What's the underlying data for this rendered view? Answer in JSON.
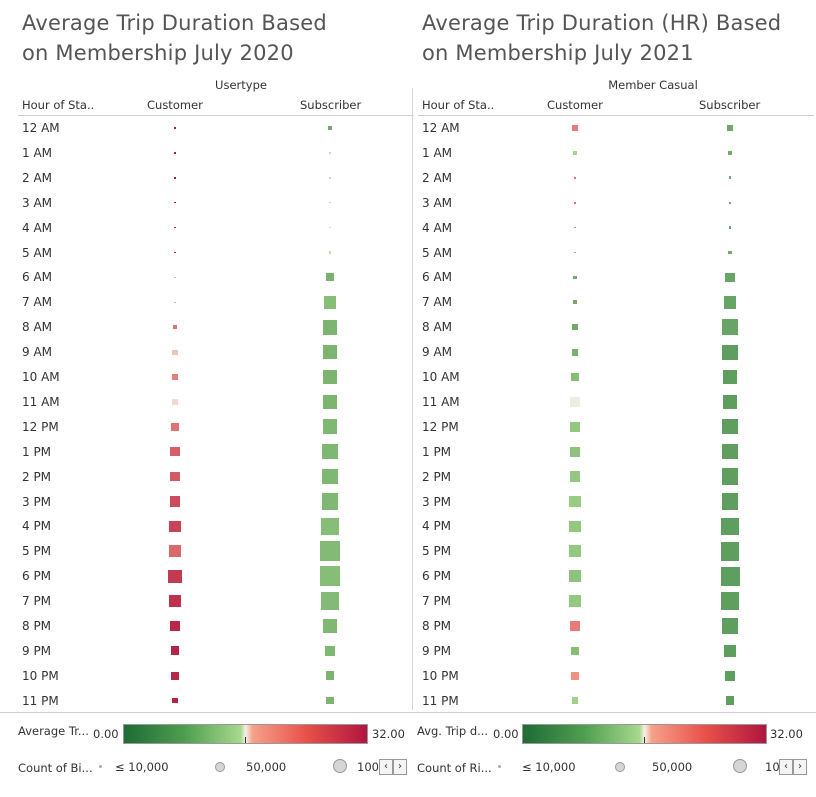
{
  "chart_data": [
    {
      "type": "heatmap",
      "title": "Average Trip Duration Based on Membership July 2020",
      "column_group_title": "Usertype",
      "row_header": "Hour of Sta..",
      "columns": [
        "Customer",
        "Subscriber"
      ],
      "rows": [
        "12 AM",
        "1 AM",
        "2 AM",
        "3 AM",
        "4 AM",
        "5 AM",
        "6 AM",
        "7 AM",
        "8 AM",
        "9 AM",
        "10 AM",
        "11 AM",
        "12 PM",
        "1 PM",
        "2 PM",
        "3 PM",
        "4 PM",
        "5 PM",
        "6 PM",
        "7 PM",
        "8 PM",
        "9 PM",
        "10 PM",
        "11 PM"
      ],
      "color_measure": "Average Trip Duration",
      "size_measure": "Count of Bike Trips",
      "avg_duration": {
        "Customer": [
          31.5,
          31.5,
          31.5,
          31.5,
          31.5,
          31.5,
          17.5,
          17.5,
          22,
          17,
          21,
          16.5,
          22,
          24,
          24.5,
          26,
          27,
          23,
          28,
          29,
          30,
          30.5,
          30,
          30.5
        ],
        "Subscriber": [
          6,
          15,
          15,
          15,
          15,
          15,
          7,
          9,
          7.5,
          7.5,
          7.5,
          7.5,
          8,
          8,
          8,
          8,
          9,
          8.5,
          9,
          8.5,
          8,
          8,
          7.5,
          7.5
        ]
      },
      "trip_count": {
        "Customer": [
          300,
          250,
          200,
          150,
          150,
          200,
          200,
          300,
          6000,
          8000,
          9000,
          10000,
          20000,
          26000,
          28000,
          32000,
          38000,
          43000,
          52000,
          48000,
          32000,
          24000,
          17000,
          8000
        ],
        "Subscriber": [
          5000,
          1200,
          800,
          600,
          600,
          1500,
          20000,
          48000,
          66000,
          62000,
          58000,
          60000,
          66000,
          72000,
          74000,
          80000,
          90000,
          118000,
          122000,
          100000,
          58000,
          32000,
          24000,
          16000
        ]
      }
    },
    {
      "type": "heatmap",
      "title": "Average Trip Duration (HR) Based on Membership July 2021",
      "column_group_title": "Member Casual",
      "row_header": "Hour of Sta..",
      "columns": [
        "Customer",
        "Subscriber"
      ],
      "rows": [
        "12 AM",
        "1 AM",
        "2 AM",
        "3 AM",
        "4 AM",
        "5 AM",
        "6 AM",
        "7 AM",
        "8 AM",
        "9 AM",
        "10 AM",
        "11 AM",
        "12 PM",
        "1 PM",
        "2 PM",
        "3 PM",
        "4 PM",
        "5 PM",
        "6 PM",
        "7 PM",
        "8 PM",
        "9 PM",
        "10 PM",
        "11 PM"
      ],
      "color_measure": "Avg. Trip duration (HR)",
      "size_measure": "Count of Rides",
      "avg_duration": {
        "Customer": [
          21,
          14,
          22,
          22,
          22,
          21,
          6,
          6,
          6,
          7,
          9,
          16,
          11,
          10,
          11,
          12,
          11,
          11,
          10,
          11,
          21,
          9,
          19,
          13
        ],
        "Subscriber": [
          6,
          6,
          6,
          6,
          6,
          6,
          5,
          5,
          5,
          4,
          4,
          4,
          4,
          4,
          4,
          4,
          4,
          4,
          4,
          4,
          4,
          4,
          4,
          4
        ]
      },
      "trip_count": {
        "Customer": [
          6000,
          4000,
          700,
          600,
          600,
          600,
          2000,
          3500,
          7000,
          9000,
          12000,
          18000,
          19000,
          20000,
          21000,
          24000,
          25000,
          28000,
          30000,
          27000,
          20000,
          14000,
          12000,
          9000
        ],
        "Subscriber": [
          8000,
          3500,
          1500,
          1000,
          1000,
          2500,
          16000,
          30000,
          48000,
          44000,
          38000,
          40000,
          44000,
          47000,
          52000,
          56000,
          60000,
          66000,
          70000,
          60000,
          44000,
          30000,
          20000,
          14000
        ]
      }
    }
  ],
  "legend": {
    "left": {
      "color_label": "Average Tr...",
      "color_min": "0.00",
      "color_max": "32.00",
      "size_label": "Count of Bi...",
      "size_items": [
        "≤ 10,000",
        "50,000",
        "100"
      ]
    },
    "right": {
      "color_label": "Avg. Trip d...",
      "color_min": "0.00",
      "color_max": "32.00",
      "size_label": "Count of Ri...",
      "size_items": [
        "≤ 10,000",
        "50,000",
        "10"
      ]
    },
    "nav_prev": "‹",
    "nav_next": "›"
  },
  "colors": {
    "green_dark": "#1e6b35",
    "green_light": "#a8d88d",
    "neutral": "#f0ece4",
    "red_light": "#f6a08a",
    "red_dark": "#b0163f"
  }
}
